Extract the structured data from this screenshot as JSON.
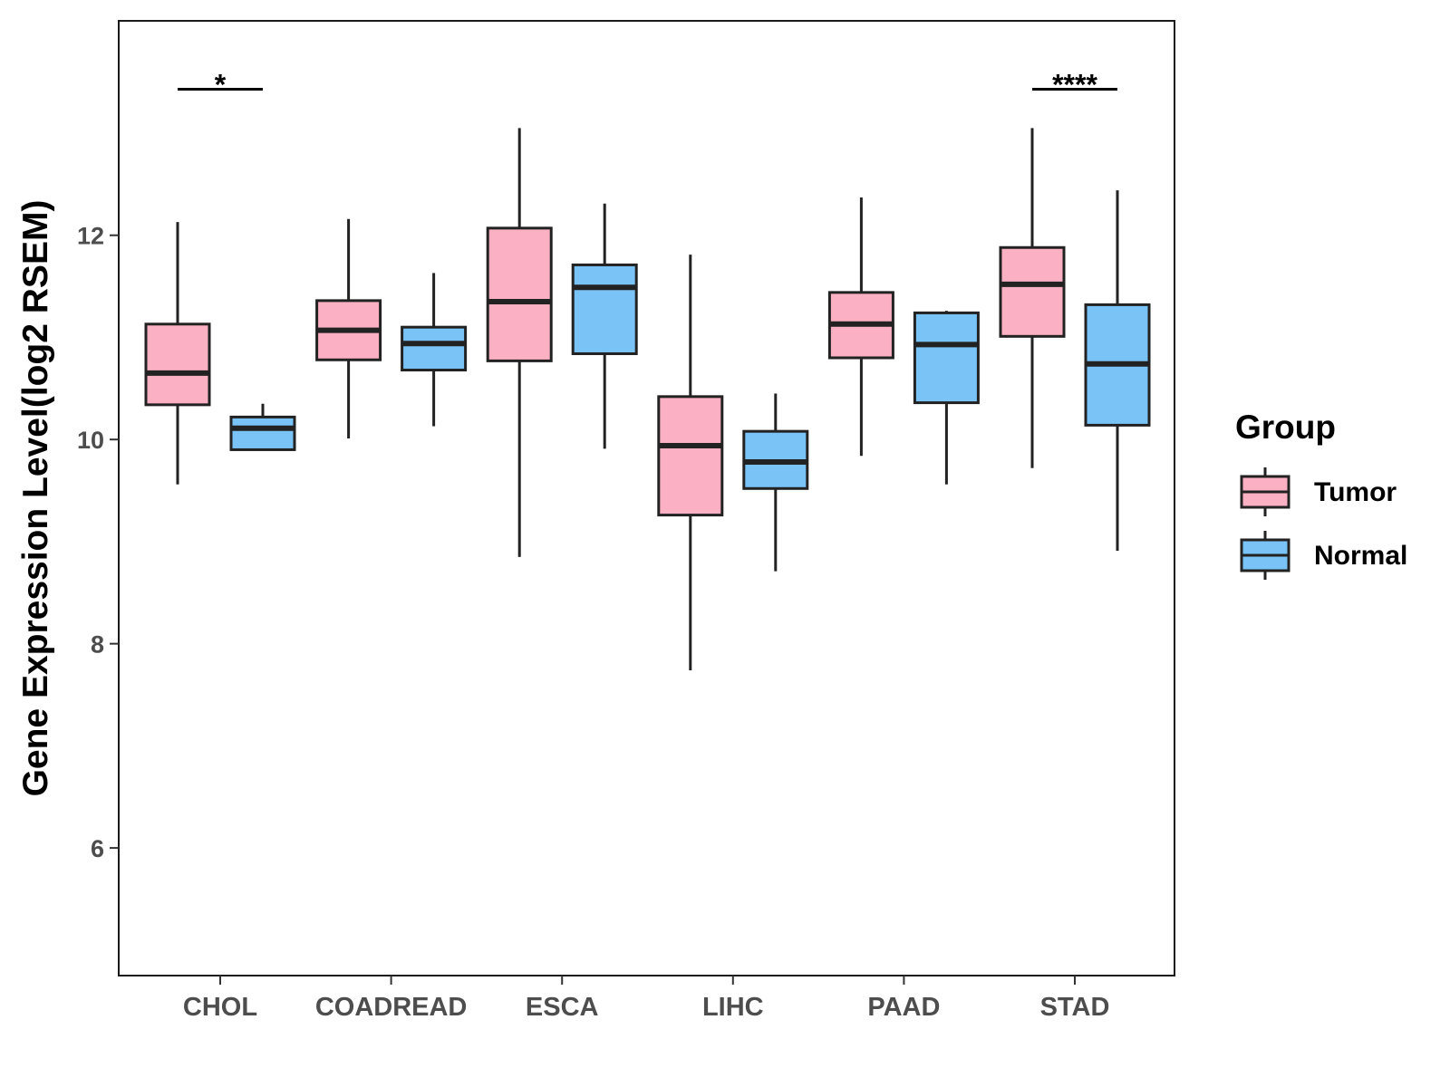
{
  "chart_data": {
    "type": "boxplot",
    "title": "",
    "xlabel": "",
    "ylabel": "Gene Expression Level(log2 RSEM)",
    "ylim": [
      4.75,
      14.1
    ],
    "yticks": [
      6,
      8,
      10,
      12
    ],
    "grid": false,
    "legend": {
      "title": "Group",
      "position": "right",
      "entries": [
        {
          "name": "Tumor",
          "color": "#FBB1C3"
        },
        {
          "name": "Normal",
          "color": "#7AC3F7"
        }
      ]
    },
    "categories": [
      "CHOL",
      "COADREAD",
      "ESCA",
      "LIHC",
      "PAAD",
      "STAD"
    ],
    "series": [
      {
        "name": "Tumor",
        "color": "#FBB1C3",
        "boxes": [
          {
            "min": 9.56,
            "q1": 10.34,
            "median": 10.65,
            "q3": 11.13,
            "max": 12.13
          },
          {
            "min": 10.01,
            "q1": 10.78,
            "median": 11.07,
            "q3": 11.36,
            "max": 12.16
          },
          {
            "min": 8.85,
            "q1": 10.77,
            "median": 11.35,
            "q3": 12.07,
            "max": 13.05
          },
          {
            "min": 7.74,
            "q1": 9.26,
            "median": 9.94,
            "q3": 10.42,
            "max": 11.81
          },
          {
            "min": 9.84,
            "q1": 10.8,
            "median": 11.13,
            "q3": 11.44,
            "max": 12.37
          },
          {
            "min": 9.72,
            "q1": 11.01,
            "median": 11.52,
            "q3": 11.88,
            "max": 13.05
          }
        ]
      },
      {
        "name": "Normal",
        "color": "#7AC3F7",
        "boxes": [
          {
            "min": 9.9,
            "q1": 9.9,
            "median": 10.11,
            "q3": 10.22,
            "max": 10.35
          },
          {
            "min": 10.13,
            "q1": 10.68,
            "median": 10.94,
            "q3": 11.1,
            "max": 11.63
          },
          {
            "min": 9.91,
            "q1": 10.84,
            "median": 11.49,
            "q3": 11.71,
            "max": 12.31
          },
          {
            "min": 8.71,
            "q1": 9.52,
            "median": 9.78,
            "q3": 10.08,
            "max": 10.45
          },
          {
            "min": 9.56,
            "q1": 10.36,
            "median": 10.93,
            "q3": 11.24,
            "max": 11.26
          },
          {
            "min": 8.91,
            "q1": 10.14,
            "median": 10.74,
            "q3": 11.32,
            "max": 12.44
          }
        ]
      }
    ],
    "annotations": [
      {
        "category": "CHOL",
        "label": "*",
        "y": 13.43
      },
      {
        "category": "STAD",
        "label": "****",
        "y": 13.43
      }
    ]
  }
}
